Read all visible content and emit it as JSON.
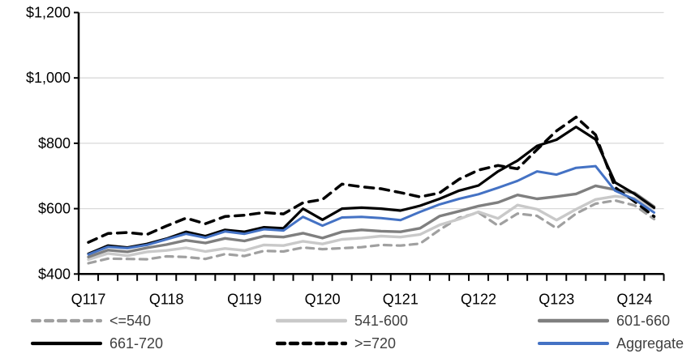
{
  "chart_data": {
    "type": "line",
    "title": "",
    "xlabel": "",
    "ylabel": "",
    "grid": true,
    "legend_position": "bottom",
    "background": "#ffffff",
    "gridline_color": "#d9d9d9",
    "axis_color": "#000000",
    "y_axis": {
      "min": 400,
      "max": 1200,
      "tick_step": 200,
      "tick_labels": [
        "$400",
        "$600",
        "$800",
        "$1,000",
        "$1,200"
      ]
    },
    "x_axis": {
      "tick_label_every": 4,
      "categories": [
        "Q117",
        "Q217",
        "Q317",
        "Q417",
        "Q118",
        "Q218",
        "Q318",
        "Q418",
        "Q119",
        "Q219",
        "Q319",
        "Q419",
        "Q120",
        "Q220",
        "Q320",
        "Q420",
        "Q121",
        "Q221",
        "Q321",
        "Q421",
        "Q122",
        "Q222",
        "Q322",
        "Q422",
        "Q123",
        "Q223",
        "Q323",
        "Q423",
        "Q124",
        "Q224"
      ],
      "visible_labels": [
        "Q117",
        "Q118",
        "Q119",
        "Q120",
        "Q121",
        "Q122",
        "Q123",
        "Q124"
      ]
    },
    "series": [
      {
        "name": "<=540",
        "color": "#a0a0a0",
        "style": "dashed",
        "width": 3.2,
        "dash": "9 7",
        "values": [
          433,
          447,
          446,
          445,
          454,
          452,
          446,
          461,
          455,
          471,
          469,
          481,
          476,
          479,
          482,
          489,
          487,
          493,
          535,
          572,
          588,
          548,
          585,
          578,
          540,
          585,
          615,
          625,
          610,
          568
        ]
      },
      {
        "name": "541-600",
        "color": "#c9c9c9",
        "style": "solid",
        "width": 3.4,
        "dash": null,
        "values": [
          444,
          463,
          456,
          468,
          472,
          480,
          469,
          478,
          472,
          489,
          487,
          500,
          492,
          506,
          510,
          516,
          513,
          521,
          550,
          568,
          590,
          570,
          611,
          598,
          565,
          598,
          628,
          638,
          632,
          600
        ]
      },
      {
        "name": "601-660",
        "color": "#7f7f7f",
        "style": "solid",
        "width": 3.4,
        "dash": null,
        "values": [
          452,
          473,
          468,
          480,
          490,
          503,
          495,
          509,
          501,
          516,
          513,
          525,
          510,
          529,
          535,
          531,
          529,
          540,
          577,
          592,
          608,
          619,
          642,
          630,
          637,
          645,
          670,
          658,
          648,
          606
        ]
      },
      {
        "name": "661-720",
        "color": "#000000",
        "style": "solid",
        "width": 3.2,
        "dash": null,
        "values": [
          462,
          487,
          481,
          492,
          508,
          529,
          516,
          535,
          529,
          543,
          540,
          600,
          566,
          600,
          603,
          600,
          594,
          609,
          630,
          655,
          671,
          714,
          747,
          792,
          811,
          850,
          812,
          680,
          645,
          603
        ]
      },
      {
        "name": ">=720",
        "color": "#000000",
        "style": "dashed",
        "width": 3.5,
        "dash": "11 8",
        "values": [
          497,
          524,
          527,
          521,
          547,
          571,
          554,
          576,
          580,
          588,
          584,
          618,
          628,
          675,
          667,
          661,
          649,
          636,
          648,
          690,
          718,
          732,
          722,
          781,
          838,
          880,
          826,
          665,
          622,
          576
        ]
      },
      {
        "name": "Aggregate",
        "color": "#4472c4",
        "style": "solid",
        "width": 3.0,
        "dash": null,
        "values": [
          460,
          483,
          479,
          489,
          506,
          523,
          511,
          530,
          523,
          537,
          533,
          575,
          548,
          573,
          575,
          571,
          565,
          590,
          613,
          630,
          644,
          664,
          685,
          714,
          704,
          725,
          730,
          655,
          628,
          588
        ]
      }
    ],
    "legend": {
      "text_color": "#404040",
      "rows": [
        [
          "<=540",
          "541-600",
          "601-660"
        ],
        [
          "661-720",
          ">=720",
          "Aggregate"
        ]
      ]
    }
  }
}
